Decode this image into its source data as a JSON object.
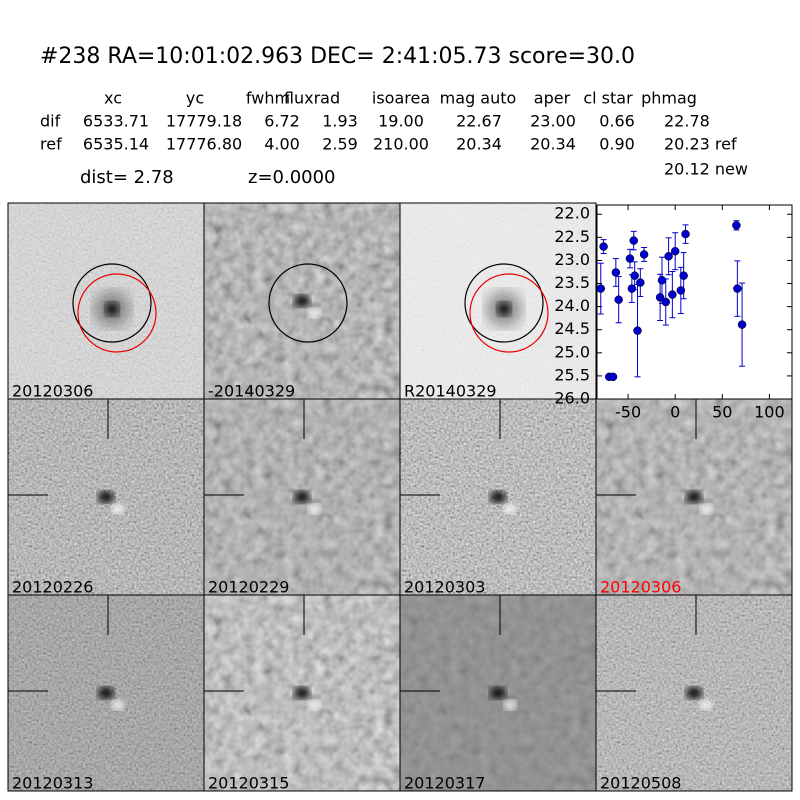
{
  "header": {
    "title": "#238   RA=10:01:02.963 DEC= 2:41:05.73      score=30.0"
  },
  "table": {
    "columns": [
      "xc",
      "yc",
      "fwhm",
      "fluxrad",
      "isoarea",
      "mag auto",
      "aper",
      "cl star",
      "phmag"
    ],
    "rows": [
      [
        "dif",
        "6533.71",
        "17779.18",
        "6.72",
        "1.93",
        "19.00",
        "22.67",
        "23.00",
        "0.66",
        "22.78"
      ],
      [
        "ref",
        "6535.14",
        "17776.80",
        "4.00",
        "2.59",
        "210.00",
        "20.34",
        "20.34",
        "0.90",
        "20.23 ref"
      ]
    ],
    "extra": "20.12 new"
  },
  "dist": "dist=  2.78",
  "z": "z=0.0000",
  "stamps": [
    {
      "label": "20120306",
      "color": "#000000"
    },
    {
      "label": "-20140329",
      "color": "#000000"
    },
    {
      "label": "R20140329",
      "color": "#000000"
    },
    {
      "label": "20120226",
      "color": "#000000"
    },
    {
      "label": "20120229",
      "color": "#000000"
    },
    {
      "label": "20120303",
      "color": "#000000"
    },
    {
      "label": "20120306",
      "color": "#ff0000"
    },
    {
      "label": "20120313",
      "color": "#000000"
    },
    {
      "label": "20120315",
      "color": "#000000"
    },
    {
      "label": "20120317",
      "color": "#000000"
    },
    {
      "label": "20120508",
      "color": "#000000"
    }
  ],
  "chart_data": {
    "type": "scatter",
    "x": [
      -79,
      -76,
      -70,
      -66,
      -63,
      -60,
      -48,
      -46,
      -44,
      -43,
      -40,
      -37,
      -33,
      -16,
      -14,
      -10,
      -7,
      -3,
      0,
      6,
      9,
      11,
      65,
      66,
      71
    ],
    "series": [
      {
        "color": "#0000cc",
        "values": [
          23.61,
          22.7,
          25.52,
          25.52,
          23.26,
          23.85,
          22.96,
          23.61,
          22.57,
          23.33,
          24.52,
          23.48,
          22.87,
          23.8,
          23.43,
          23.9,
          22.91,
          23.74,
          22.8,
          23.65,
          23.33,
          22.43,
          22.24,
          23.61,
          24.39
        ],
        "errors": [
          0.55,
          0.15,
          0.05,
          0.05,
          0.3,
          0.5,
          0.2,
          0.3,
          0.2,
          0.3,
          1.0,
          0.3,
          0.15,
          0.5,
          0.5,
          0.5,
          0.4,
          0.5,
          0.4,
          0.5,
          0.5,
          0.2,
          0.1,
          0.6,
          0.9
        ]
      }
    ],
    "xlim": [
      -83,
      124
    ],
    "xticks": [
      -50,
      0,
      50,
      100
    ],
    "ylim": [
      26.0,
      21.8
    ],
    "yticks": [
      {
        "value": 22,
        "label": "22.0"
      },
      {
        "value": 22.5,
        "label": "22.5"
      },
      {
        "value": 23,
        "label": "23.0"
      },
      {
        "value": 23.5,
        "label": "23.5"
      },
      {
        "value": 24,
        "label": "24.0"
      },
      {
        "value": 24.5,
        "label": "24.5"
      },
      {
        "value": 25,
        "label": "25.0"
      },
      {
        "value": 25.5,
        "label": "25.5"
      },
      {
        "value": 26,
        "label": "26.0"
      }
    ]
  }
}
